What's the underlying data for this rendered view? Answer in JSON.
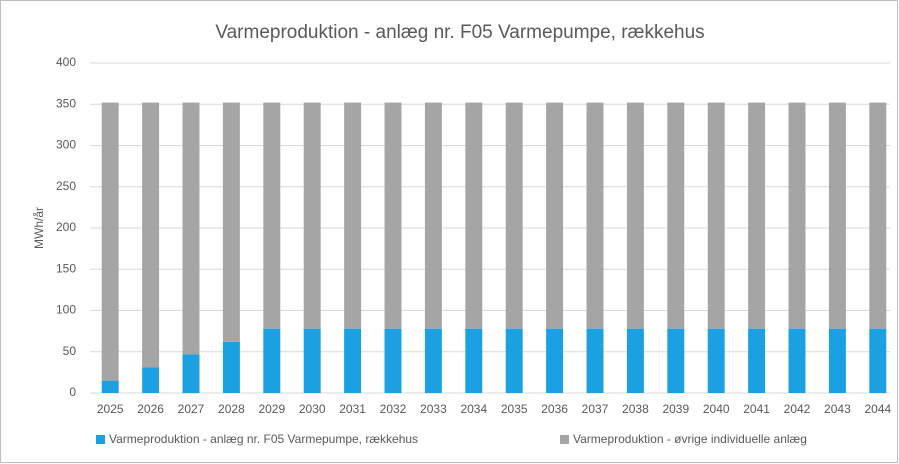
{
  "chart_data": {
    "type": "stacked_bar",
    "title": "Varmeproduktion - anlæg nr. F05 Varmepumpe, rækkehus",
    "ylabel": "MWh/år",
    "categories": [
      "2025",
      "2026",
      "2027",
      "2028",
      "2029",
      "2030",
      "2031",
      "2032",
      "2033",
      "2034",
      "2035",
      "2036",
      "2037",
      "2038",
      "2039",
      "2040",
      "2041",
      "2042",
      "2043",
      "2044"
    ],
    "series": [
      {
        "name": "Varmeproduktion - anlæg nr. F05 Varmepumpe, rækkehus",
        "color": "#1ba1e2",
        "values": [
          15,
          31,
          47,
          62,
          78,
          78,
          78,
          78,
          78,
          78,
          78,
          78,
          78,
          78,
          78,
          78,
          78,
          78,
          78,
          78
        ]
      },
      {
        "name": "Varmeproduktion - øvrige individuelle anlæg",
        "color": "#a5a5a5",
        "values": [
          337,
          321,
          305,
          290,
          274,
          274,
          274,
          274,
          274,
          274,
          274,
          274,
          274,
          274,
          274,
          274,
          274,
          274,
          274,
          274
        ]
      }
    ],
    "ylim": [
      0,
      400
    ],
    "yticks": [
      0,
      50,
      100,
      150,
      200,
      250,
      300,
      350,
      400
    ],
    "grid": true,
    "legend": "bottom"
  }
}
